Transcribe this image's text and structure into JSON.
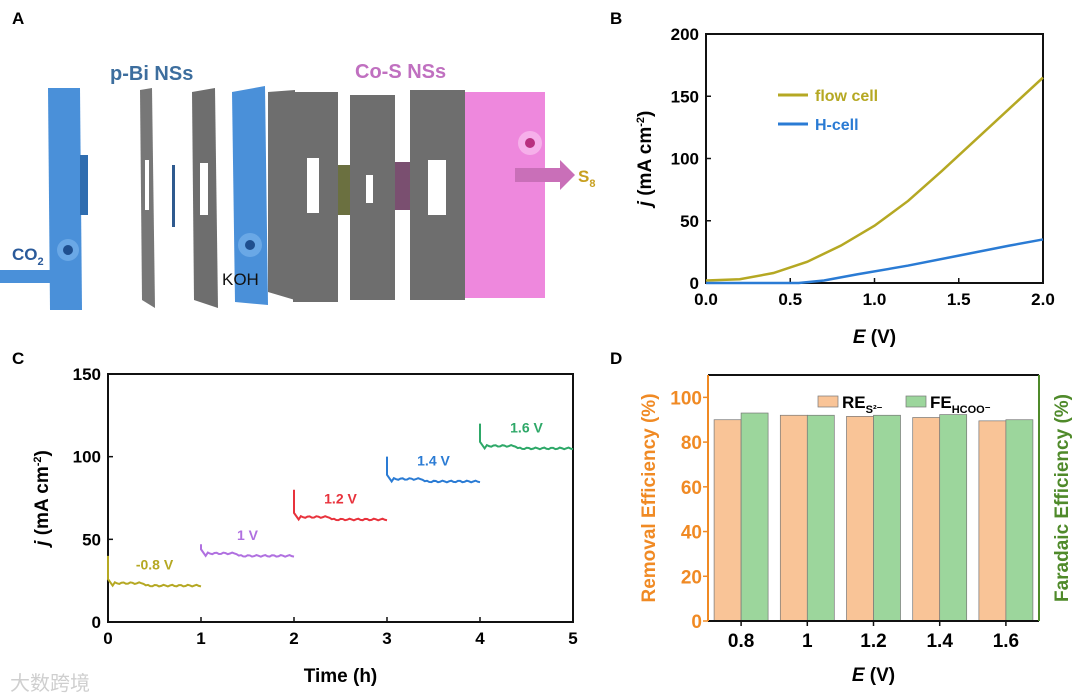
{
  "panel_labels": [
    "A",
    "B",
    "C",
    "D"
  ],
  "watermark": "大数跨境",
  "schematic": {
    "left_label": "p-Bi NSs",
    "right_label": "Co-S NSs",
    "inlet_label": "CO",
    "inlet_sub": "2",
    "electrolyte_label": "KOH",
    "outlet_label": "S",
    "outlet_sub": "8",
    "colors": {
      "cathode": "#4a90d9",
      "anode": "#ee88dd",
      "sheet": "#6e6e6e"
    }
  },
  "chart_data": [
    {
      "id": "B",
      "type": "line",
      "xlabel": "E (V)",
      "xlabel_main": "E",
      "xlabel_unit": " (V)",
      "ylabel_main": "j",
      "ylabel_unit": " (mA cm",
      "ylabel_sup": "-2",
      "ylabel_end": ")",
      "xlim": [
        0,
        2
      ],
      "ylim": [
        0,
        200
      ],
      "xticks": [
        "0.0",
        "0.5",
        "1.0",
        "1.5",
        "2.0"
      ],
      "yticks": [
        "0",
        "50",
        "100",
        "150",
        "200"
      ],
      "legend": "top-left",
      "series": [
        {
          "name": "flow cell",
          "color": "#b5a823",
          "x": [
            0,
            0.2,
            0.4,
            0.6,
            0.8,
            1.0,
            1.2,
            1.4,
            1.6,
            1.8,
            2.0
          ],
          "y": [
            2,
            3,
            8,
            17,
            30,
            46,
            66,
            90,
            115,
            140,
            165
          ]
        },
        {
          "name": "H-cell",
          "color": "#2a7bd4",
          "x": [
            0,
            0.55,
            0.7,
            0.9,
            1.2,
            1.5,
            1.8,
            2.0
          ],
          "y": [
            0,
            0,
            2,
            7,
            14,
            22,
            30,
            35
          ]
        }
      ]
    },
    {
      "id": "C",
      "type": "line",
      "xlabel": "Time (h)",
      "ylabel_main": "j",
      "ylabel_unit": " (mA cm",
      "ylabel_sup": "-2",
      "ylabel_end": ")",
      "xlim": [
        0,
        5
      ],
      "ylim": [
        0,
        150
      ],
      "xticks": [
        "0",
        "1",
        "2",
        "3",
        "4",
        "5"
      ],
      "yticks": [
        "0",
        "50",
        "100",
        "150"
      ],
      "series": [
        {
          "name": "-0.8 V",
          "color": "#b5a823",
          "t": [
            0,
            1
          ],
          "spike": 40,
          "level": 22
        },
        {
          "name": "1 V",
          "color": "#b070e0",
          "t": [
            1,
            2
          ],
          "spike": 47,
          "level": 40
        },
        {
          "name": "1.2 V",
          "color": "#e8323c",
          "t": [
            2,
            3
          ],
          "spike": 80,
          "level": 62
        },
        {
          "name": "1.4 V",
          "color": "#2a7bd4",
          "t": [
            3,
            4
          ],
          "spike": 100,
          "level": 85
        },
        {
          "name": "1.6 V",
          "color": "#2ea868",
          "t": [
            4,
            5
          ],
          "spike": 120,
          "level": 105
        }
      ]
    },
    {
      "id": "D",
      "type": "bar",
      "xlabel_main": "E",
      "xlabel_unit": " (V)",
      "ylabel_left": "Removal Efficiency (%)",
      "ylabel_right": "Faradaic Efficiency (%)",
      "categories": [
        "0.8",
        "1",
        "1.2",
        "1.4",
        "1.6"
      ],
      "ylim": [
        0,
        110
      ],
      "yticks": [
        "0",
        "20",
        "40",
        "60",
        "80",
        "100"
      ],
      "legend": "top-right",
      "series": [
        {
          "name": "RE",
          "sub": "S²⁻",
          "color": "#f9c497",
          "values": [
            90,
            92,
            91.5,
            91,
            89.5
          ]
        },
        {
          "name": "FE",
          "sub": "HCOO⁻",
          "color": "#9cd69c",
          "values": [
            93,
            92,
            92,
            92.3,
            90
          ]
        }
      ],
      "colors": {
        "left_axis": "#f08a24",
        "right_axis": "#4f8a2a"
      }
    }
  ]
}
